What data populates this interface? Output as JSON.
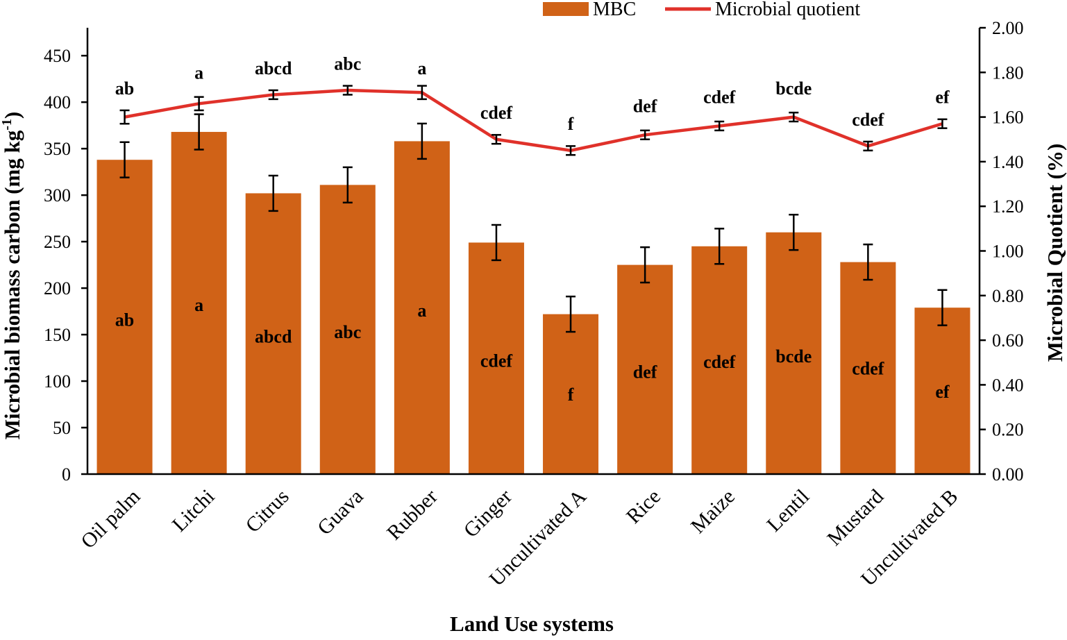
{
  "chart_data": {
    "type": "bar",
    "categories": [
      "Oil palm",
      "Litchi",
      "Citrus",
      "Guava",
      "Rubber",
      "Ginger",
      "Uncultivated A",
      "Rice",
      "Maize",
      "Lentil",
      "Mustard",
      "Uncultivated B"
    ],
    "xlabel": "Land Use systems",
    "ylabel_main": "Microbial biomass carbon (mg kg",
    "ylabel_sup": "-1",
    "ylabel_close": ")",
    "y2label": "Microbial Quotient (%)",
    "ylim": [
      0,
      480
    ],
    "y_ticks": [
      "0",
      "50",
      "100",
      "150",
      "200",
      "250",
      "300",
      "350",
      "400",
      "450"
    ],
    "y2lim": [
      0,
      2.0
    ],
    "y2_ticks": [
      "0.00",
      "0.20",
      "0.40",
      "0.60",
      "0.80",
      "1.00",
      "1.20",
      "1.40",
      "1.60",
      "1.80",
      "2.00"
    ],
    "series": [
      {
        "name": "MBC",
        "type": "bar",
        "axis": "left",
        "color": "#D06217",
        "values": [
          338,
          368,
          302,
          311,
          358,
          249,
          172,
          225,
          245,
          260,
          228,
          179
        ],
        "error": [
          19,
          19,
          19,
          19,
          19,
          19,
          19,
          19,
          19,
          19,
          19,
          19
        ],
        "labels": [
          "ab",
          "a",
          "abcd",
          "abc",
          "a",
          "cdef",
          "f",
          "def",
          "cdef",
          "bcde",
          "cdef",
          "ef"
        ],
        "label_values": [
          166,
          182,
          148,
          153,
          176,
          122,
          86,
          110,
          121,
          127,
          114,
          89
        ]
      },
      {
        "name": "Microbial quotient",
        "type": "line",
        "axis": "right",
        "color": "#E0312A",
        "values": [
          1.6,
          1.66,
          1.7,
          1.72,
          1.71,
          1.5,
          1.45,
          1.52,
          1.56,
          1.6,
          1.47,
          1.57
        ],
        "error": [
          0.03,
          0.03,
          0.02,
          0.02,
          0.03,
          0.02,
          0.02,
          0.02,
          0.02,
          0.02,
          0.02,
          0.02
        ],
        "labels": [
          "ab",
          "a",
          "abcd",
          "abc",
          "a",
          "cdef",
          "f",
          "def",
          "cdef",
          "bcde",
          "cdef",
          "ef"
        ],
        "label_values": [
          1.73,
          1.8,
          1.82,
          1.84,
          1.82,
          1.62,
          1.57,
          1.65,
          1.69,
          1.73,
          1.59,
          1.69
        ]
      }
    ],
    "legend": [
      "MBC",
      "Microbial quotient"
    ],
    "legend_position": "top-right"
  }
}
